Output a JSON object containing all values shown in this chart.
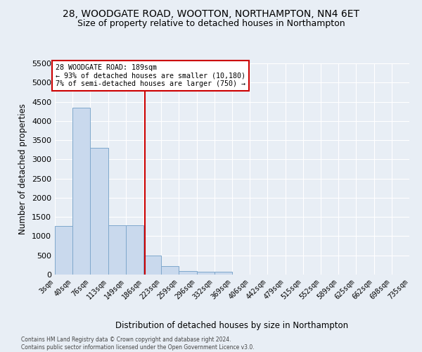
{
  "title": "28, WOODGATE ROAD, WOOTTON, NORTHAMPTON, NN4 6ET",
  "subtitle": "Size of property relative to detached houses in Northampton",
  "xlabel": "Distribution of detached houses by size in Northampton",
  "ylabel": "Number of detached properties",
  "footer_line1": "Contains HM Land Registry data © Crown copyright and database right 2024.",
  "footer_line2": "Contains public sector information licensed under the Open Government Licence v3.0.",
  "bin_edges": [
    3,
    40,
    76,
    113,
    149,
    186,
    223,
    259,
    296,
    332,
    369,
    406,
    442,
    479,
    515,
    552,
    589,
    625,
    662,
    698,
    735
  ],
  "bin_counts": [
    1270,
    4350,
    3300,
    1280,
    1280,
    490,
    220,
    100,
    75,
    65,
    0,
    0,
    0,
    0,
    0,
    0,
    0,
    0,
    0,
    0
  ],
  "bar_color": "#c9d9ed",
  "bar_edge_color": "#7fa8cc",
  "vline_x": 189,
  "vline_color": "#cc0000",
  "annotation_line1": "28 WOODGATE ROAD: 189sqm",
  "annotation_line2": "← 93% of detached houses are smaller (10,180)",
  "annotation_line3": "7% of semi-detached houses are larger (750) →",
  "annotation_box_color": "#cc0000",
  "annotation_text_color": "black",
  "annotation_bg": "white",
  "ylim": [
    0,
    5500
  ],
  "yticks": [
    0,
    500,
    1000,
    1500,
    2000,
    2500,
    3000,
    3500,
    4000,
    4500,
    5000,
    5500
  ],
  "bg_color": "#e8eef5",
  "grid_color": "white",
  "title_fontsize": 10,
  "subtitle_fontsize": 9,
  "tick_label_fontsize": 7,
  "ylabel_fontsize": 8.5,
  "xlabel_fontsize": 8.5
}
